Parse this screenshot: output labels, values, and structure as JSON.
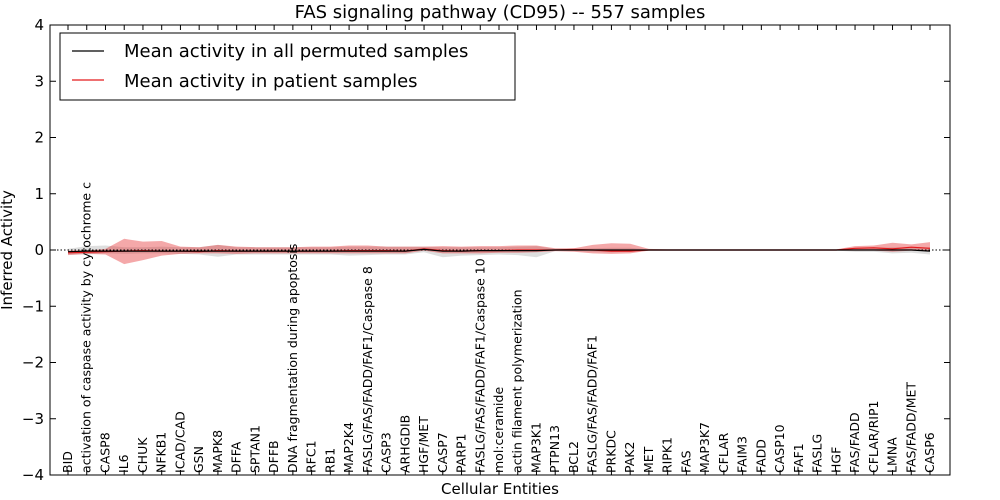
{
  "chart_data": {
    "type": "line",
    "title": "FAS signaling pathway (CD95) -- 557 samples",
    "xlabel": "Cellular Entities",
    "ylabel": "Inferred Activity",
    "ylim": [
      -4,
      4
    ],
    "yticks": [
      4,
      3,
      2,
      1,
      0,
      -1,
      -2,
      -3,
      -4
    ],
    "ytick_labels": [
      "4",
      "3",
      "2",
      "1",
      "0",
      "−1",
      "−2",
      "−3",
      "−4"
    ],
    "grid": false,
    "legend_position": "top-left",
    "categories": [
      "BID",
      "activation of caspase activity by cytochrome c",
      "CASP8",
      "IL6",
      "CHUK",
      "NFKB1",
      "ICAD/CAD",
      "GSN",
      "MAPK8",
      "DFFA",
      "SPTAN1",
      "DFFB",
      "DNA fragmentation during apoptosis",
      "RFC1",
      "RB1",
      "MAP2K4",
      "FASLG/FAS/FADD/FAF1/Caspase 8",
      "CASP3",
      "ARHGDIB",
      "HGF/MET",
      "CASP7",
      "PARP1",
      "FASLG/FAS/FADD/FAF1/Caspase 10",
      "mol:ceramide",
      "actin filament polymerization",
      "MAP3K1",
      "PTPN13",
      "BCL2",
      "FASLG/FAS/FADD/FAF1",
      "PRKDC",
      "PAK2",
      "MET",
      "RIPK1",
      "FAS",
      "MAP3K7",
      "CFLAR",
      "FAIM3",
      "FADD",
      "CASP10",
      "FAF1",
      "FASLG",
      "HGF",
      "FAS/FADD",
      "CFLAR/RIP1",
      "LMNA",
      "FAS/FADD/MET",
      "CASP6"
    ],
    "series": [
      {
        "name": "Mean activity in all permuted samples",
        "color": "#000000",
        "values": [
          -0.03,
          -0.02,
          -0.02,
          -0.02,
          -0.02,
          -0.02,
          -0.02,
          -0.02,
          -0.02,
          -0.02,
          -0.02,
          -0.02,
          -0.02,
          -0.02,
          -0.02,
          -0.02,
          -0.02,
          -0.02,
          -0.02,
          0.01,
          -0.02,
          -0.02,
          -0.01,
          -0.01,
          -0.01,
          -0.01,
          0.0,
          0.0,
          0.0,
          0.0,
          0.0,
          0.0,
          0.0,
          0.0,
          0.0,
          0.0,
          0.0,
          0.0,
          0.0,
          0.0,
          0.0,
          0.0,
          0.0,
          0.0,
          0.0,
          0.0,
          -0.02
        ],
        "band_low": [
          -0.08,
          -0.08,
          -0.06,
          -0.07,
          -0.06,
          -0.06,
          -0.07,
          -0.08,
          -0.12,
          -0.08,
          -0.08,
          -0.08,
          -0.08,
          -0.08,
          -0.08,
          -0.1,
          -0.09,
          -0.08,
          -0.08,
          -0.04,
          -0.13,
          -0.1,
          -0.09,
          -0.08,
          -0.09,
          -0.13,
          -0.02,
          -0.02,
          -0.03,
          -0.04,
          -0.03,
          -0.01,
          -0.01,
          -0.01,
          -0.01,
          -0.01,
          -0.01,
          -0.01,
          -0.01,
          -0.01,
          -0.01,
          -0.01,
          -0.03,
          -0.03,
          -0.06,
          -0.05,
          -0.08
        ],
        "band_high": [
          0.02,
          0.07,
          0.08,
          0.05,
          0.05,
          0.06,
          0.05,
          0.05,
          0.09,
          0.05,
          0.05,
          0.05,
          0.05,
          0.05,
          0.05,
          0.06,
          0.06,
          0.06,
          0.06,
          0.06,
          0.05,
          0.05,
          0.05,
          0.05,
          0.06,
          0.07,
          0.02,
          0.02,
          0.03,
          0.04,
          0.04,
          0.01,
          0.01,
          0.01,
          0.01,
          0.01,
          0.01,
          0.01,
          0.01,
          0.01,
          0.01,
          0.01,
          0.03,
          0.03,
          0.05,
          0.04,
          0.05
        ]
      },
      {
        "name": "Mean activity in patient samples",
        "color": "#e31a1c",
        "values": [
          -0.05,
          -0.04,
          -0.03,
          -0.02,
          -0.01,
          -0.02,
          -0.02,
          -0.03,
          -0.01,
          -0.02,
          -0.02,
          -0.02,
          -0.02,
          -0.02,
          -0.02,
          -0.01,
          -0.01,
          -0.01,
          -0.02,
          0.02,
          -0.01,
          -0.02,
          -0.01,
          -0.01,
          0.0,
          0.0,
          0.0,
          0.01,
          0.0,
          -0.02,
          -0.02,
          0.0,
          0.0,
          0.0,
          0.0,
          0.0,
          0.0,
          0.0,
          0.0,
          0.0,
          0.0,
          0.0,
          0.03,
          0.04,
          0.02,
          0.05,
          0.03
        ],
        "band_low": [
          -0.09,
          -0.07,
          -0.08,
          -0.25,
          -0.18,
          -0.1,
          -0.07,
          -0.06,
          -0.06,
          -0.07,
          -0.06,
          -0.06,
          -0.06,
          -0.06,
          -0.06,
          -0.06,
          -0.06,
          -0.06,
          -0.06,
          -0.01,
          -0.06,
          -0.06,
          -0.06,
          -0.05,
          -0.05,
          -0.04,
          -0.02,
          -0.03,
          -0.06,
          -0.07,
          -0.06,
          -0.01,
          -0.01,
          -0.01,
          -0.01,
          -0.01,
          -0.01,
          -0.01,
          -0.01,
          -0.01,
          -0.01,
          -0.01,
          -0.01,
          -0.01,
          -0.03,
          -0.01,
          -0.02
        ],
        "band_high": [
          -0.01,
          -0.01,
          0.02,
          0.2,
          0.15,
          0.16,
          0.06,
          0.05,
          0.09,
          0.06,
          0.05,
          0.05,
          0.05,
          0.06,
          0.06,
          0.08,
          0.08,
          0.06,
          0.06,
          0.06,
          0.07,
          0.06,
          0.07,
          0.07,
          0.08,
          0.08,
          0.03,
          0.03,
          0.09,
          0.12,
          0.11,
          0.02,
          0.01,
          0.01,
          0.01,
          0.01,
          0.01,
          0.01,
          0.01,
          0.01,
          0.01,
          0.01,
          0.07,
          0.08,
          0.13,
          0.1,
          0.14
        ]
      }
    ]
  }
}
